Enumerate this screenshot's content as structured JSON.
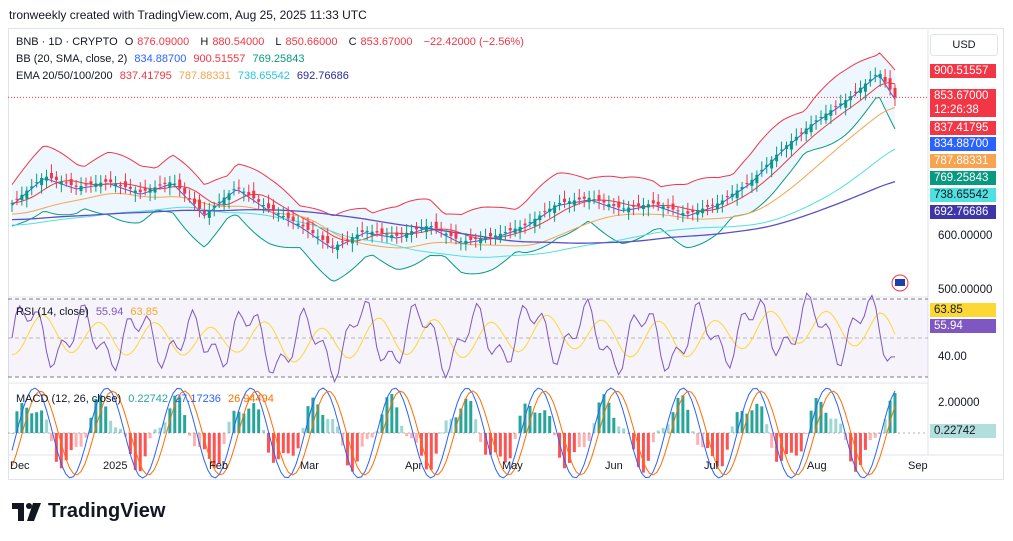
{
  "header": {
    "attribution": "tronweekly created with TradingView.com, Aug 25, 2025 11:33 UTC"
  },
  "currency_button": "USD",
  "legend": {
    "symbol": "BNB · 1D · CRYPTO",
    "o_label": "O",
    "o": "876.09000",
    "h_label": "H",
    "h": "880.54000",
    "l_label": "L",
    "l": "850.66000",
    "c_label": "C",
    "c": "853.67000",
    "change": "−22.42000 (−2.56%)",
    "bb_label": "BB (20, SMA, close, 2)",
    "bb_basis": "834.88700",
    "bb_upper": "900.51557",
    "bb_lower": "769.25843",
    "ema_label": "EMA 20/50/100/200",
    "ema20": "837.41795",
    "ema50": "787.88331",
    "ema100": "738.65542",
    "ema200": "692.76686",
    "rsi_label": "RSI (14, close)",
    "rsi": "55.94",
    "rsi_ma": "63.85",
    "macd_label": "MACD (12, 26, close)",
    "macd_hist": "0.22742",
    "macd": "27.17236",
    "macd_signal": "26.94494"
  },
  "price_tags": {
    "bb_upper": "900.51557",
    "last_price": "853.67000",
    "countdown": "12:26:38",
    "ema20": "837.41795",
    "bb_basis": "834.88700",
    "ema50": "787.88331",
    "bb_lower": "769.25843",
    "ema100": "738.65542",
    "ema200": "692.76686",
    "rsi_ma": "63.85",
    "rsi": "55.94",
    "macd_hist": "0.22742"
  },
  "axis": {
    "price_ticks": [
      "600.00000",
      "500.00000"
    ],
    "rsi_ticks": [
      "40.00"
    ],
    "macd_ticks": [
      "2.00000"
    ]
  },
  "x_labels": [
    "Dec",
    "2025",
    "Feb",
    "Mar",
    "Apr",
    "May",
    "Jun",
    "Jul",
    "Aug",
    "Sep"
  ],
  "colors": {
    "up": "#089981",
    "down": "#f23645",
    "bb_upper": "#f23645",
    "bb_basis": "#2962ff",
    "bb_lower": "#089981",
    "ema20": "#f23645",
    "ema50": "#f7a350",
    "ema100": "#4fe0e0",
    "ema200": "#5b4fc9",
    "rsi": "#7e57c2",
    "rsi_ma": "#fdd835"
  },
  "logo_text": "TradingView",
  "chart_data": {
    "type": "candlestick",
    "title": "BNB · 1D · CRYPTO",
    "x": [
      "Dec",
      "2025",
      "Feb",
      "Mar",
      "Apr",
      "May",
      "Jun",
      "Jul",
      "Aug",
      "Sep"
    ],
    "close_path": [
      [
        0,
        660
      ],
      [
        4,
        710
      ],
      [
        8,
        690
      ],
      [
        12,
        700
      ],
      [
        16,
        680
      ],
      [
        20,
        700
      ],
      [
        24,
        640
      ],
      [
        28,
        690
      ],
      [
        32,
        650
      ],
      [
        36,
        620
      ],
      [
        40,
        580
      ],
      [
        44,
        610
      ],
      [
        48,
        600
      ],
      [
        52,
        620
      ],
      [
        56,
        590
      ],
      [
        60,
        600
      ],
      [
        64,
        620
      ],
      [
        68,
        660
      ],
      [
        72,
        670
      ],
      [
        76,
        650
      ],
      [
        80,
        660
      ],
      [
        84,
        640
      ],
      [
        88,
        660
      ],
      [
        92,
        700
      ],
      [
        96,
        760
      ],
      [
        100,
        810
      ],
      [
        104,
        850
      ],
      [
        108,
        900
      ],
      [
        110,
        853.67
      ]
    ],
    "last_close": 853.67,
    "bb_upper_last": 900.51557,
    "rsi_last": 55.94,
    "rsi_ma_last": 63.85,
    "macd_hist_last": 0.22742
  }
}
